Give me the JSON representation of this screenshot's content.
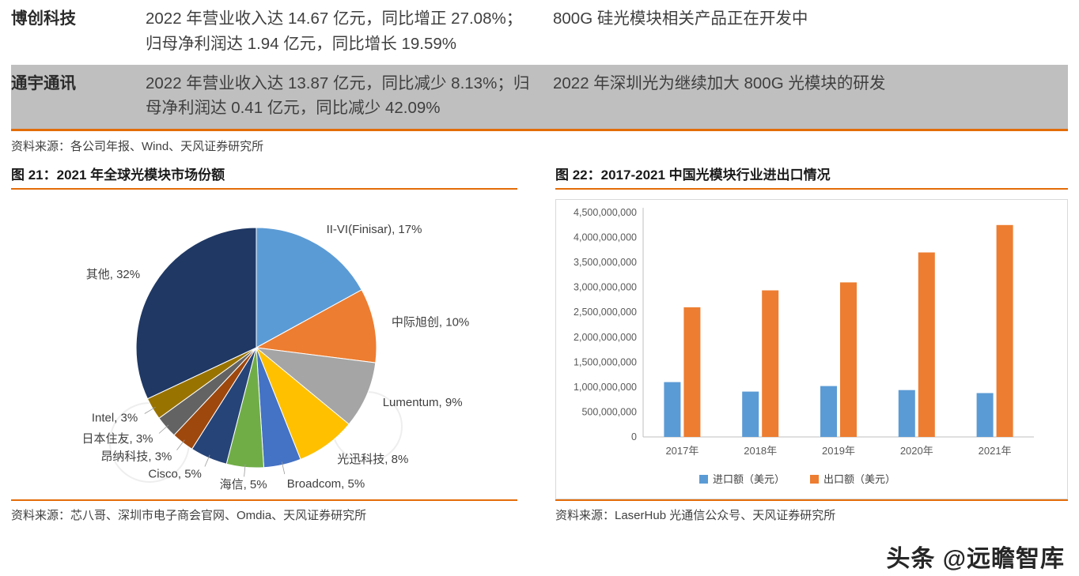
{
  "table": {
    "rows": [
      {
        "company": "博创科技",
        "financials": "2022 年营业收入达 14.67 亿元，同比增正 27.08%；归母净利润达 1.94 亿元，同比增长 19.59%",
        "progress": "800G 硅光模块相关产品正在开发中"
      },
      {
        "company": "通宇通讯",
        "financials": "2022 年营业收入达 13.87 亿元，同比减少 8.13%；归母净利润达 0.41 亿元，同比减少 42.09%",
        "progress": "2022 年深圳光为继续加大 800G 光模块的研发"
      }
    ],
    "source": "资料来源：各公司年报、Wind、天风证券研究所"
  },
  "figure21": {
    "title": "图 21：2021 年全球光模块市场份额",
    "source": "资料来源：芯八哥、深圳市电子商会官网、Omdia、天风证券研究所"
  },
  "figure22": {
    "title": "图 22：2017-2021 中国光模块行业进出口情况",
    "source": "资料来源：LaserHub 光通信公众号、天风证券研究所"
  },
  "watermark": "头条 @远瞻智库",
  "colors": {
    "accent_orange": "#E36C09",
    "row_gray": "#BFBFBF",
    "import_blue": "#5B9BD5",
    "export_orange": "#ED7D31"
  },
  "chart_data": [
    {
      "type": "pie",
      "title": "2021 年全球光模块市场份额",
      "slices": [
        {
          "label": "II-VI(Finisar)",
          "value": 17,
          "color": "#5B9BD5"
        },
        {
          "label": "中际旭创",
          "value": 10,
          "color": "#ED7D31"
        },
        {
          "label": "Lumentum",
          "value": 9,
          "color": "#A5A5A5"
        },
        {
          "label": "光迅科技",
          "value": 8,
          "color": "#FFC000"
        },
        {
          "label": "Broadcom",
          "value": 5,
          "color": "#4472C4"
        },
        {
          "label": "海信",
          "value": 5,
          "color": "#70AD47"
        },
        {
          "label": "Cisco",
          "value": 5,
          "color": "#264478"
        },
        {
          "label": "昂纳科技",
          "value": 3,
          "color": "#9E480E"
        },
        {
          "label": "日本住友",
          "value": 3,
          "color": "#636363"
        },
        {
          "label": "Intel",
          "value": 3,
          "color": "#997300"
        },
        {
          "label": "其他",
          "value": 32,
          "color": "#1F3864"
        }
      ],
      "legend_position": "none",
      "grid": false
    },
    {
      "type": "bar",
      "title": "2017-2021 中国光模块行业进出口情况",
      "categories": [
        "2017年",
        "2018年",
        "2019年",
        "2020年",
        "2021年"
      ],
      "series": [
        {
          "name": "进口额（美元）",
          "color": "#5B9BD5",
          "values": [
            1100000000,
            910000000,
            1020000000,
            940000000,
            880000000
          ]
        },
        {
          "name": "出口额（美元）",
          "color": "#ED7D31",
          "values": [
            2600000000,
            2940000000,
            3100000000,
            3700000000,
            4250000000
          ]
        }
      ],
      "ylim": [
        0,
        4500000000
      ],
      "ytick_step": 500000000,
      "legend_position": "bottom",
      "grid": false
    }
  ]
}
